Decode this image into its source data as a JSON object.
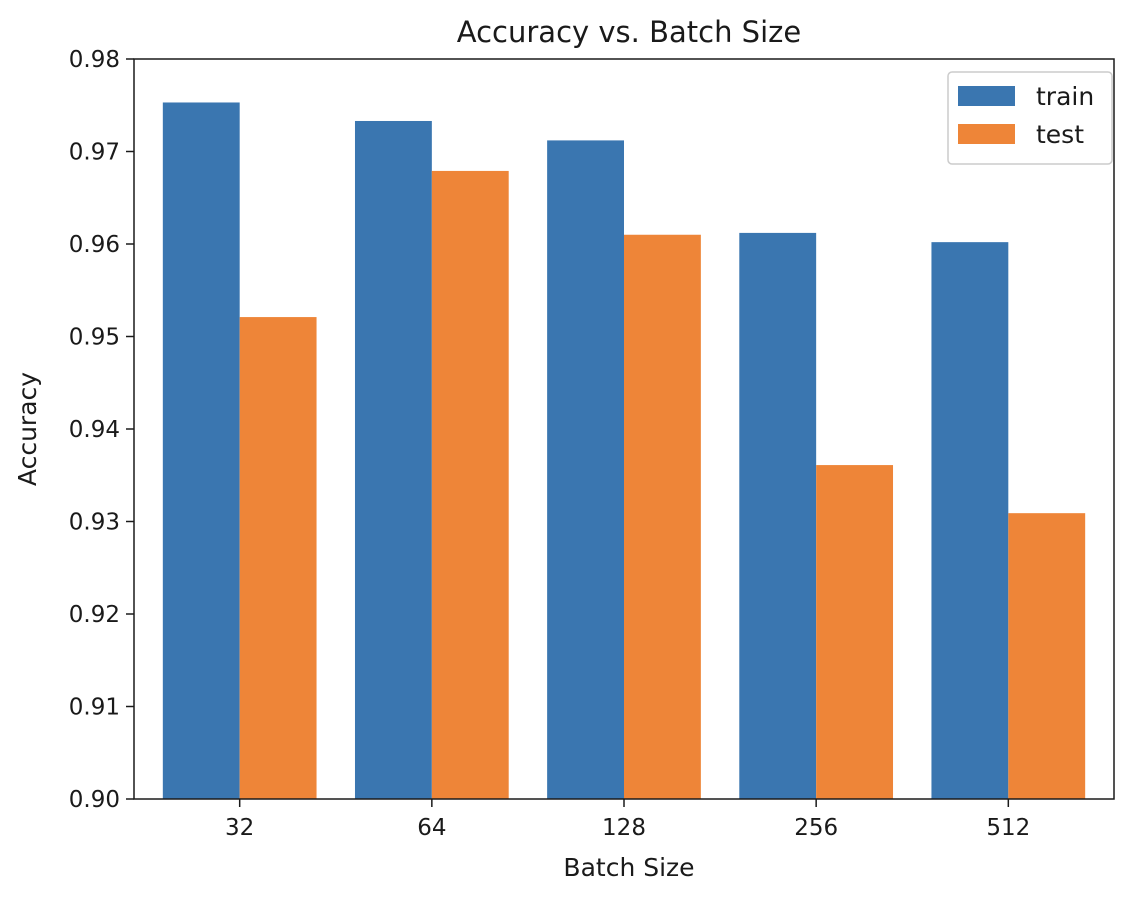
{
  "chart_data": {
    "type": "bar",
    "title": "Accuracy vs. Batch Size",
    "xlabel": "Batch Size",
    "ylabel": "Accuracy",
    "categories": [
      "32",
      "64",
      "128",
      "256",
      "512"
    ],
    "ylim": [
      0.9,
      0.98
    ],
    "yticks": [
      "0.90",
      "0.91",
      "0.92",
      "0.93",
      "0.94",
      "0.95",
      "0.96",
      "0.97",
      "0.98"
    ],
    "grid": false,
    "legend_position": "top-right",
    "series": [
      {
        "name": "train",
        "color": "#3a76b0",
        "values": [
          0.9753,
          0.9733,
          0.9712,
          0.9612,
          0.9602
        ]
      },
      {
        "name": "test",
        "color": "#ee8538",
        "values": [
          0.9521,
          0.9679,
          0.961,
          0.9361,
          0.9309
        ]
      }
    ]
  }
}
